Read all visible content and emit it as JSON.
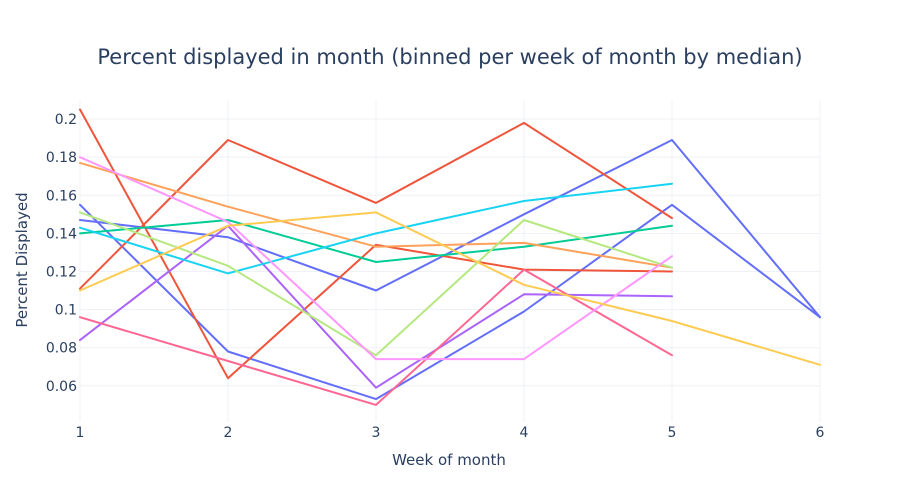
{
  "chart_data": {
    "type": "line",
    "title": "Percent displayed in month (binned per week of month by median)",
    "xlabel": "Week of month",
    "ylabel": "Percent Displayed",
    "xlim": [
      1,
      6
    ],
    "ylim": [
      0.041,
      0.21
    ],
    "x_ticks": [
      "1",
      "2",
      "3",
      "4",
      "5",
      "6"
    ],
    "y_ticks": [
      "0.06",
      "0.08",
      "0.1",
      "0.12",
      "0.14",
      "0.16",
      "0.18",
      "0.2"
    ],
    "grid": true,
    "legend": "none",
    "series": [
      {
        "color": "#636efa",
        "x": [
          1,
          2,
          3,
          4,
          5,
          6
        ],
        "y": [
          0.155,
          0.078,
          0.053,
          0.099,
          0.155,
          0.096
        ]
      },
      {
        "color": "#636efa",
        "x": [
          1,
          2,
          3,
          4,
          5,
          6
        ],
        "y": [
          0.147,
          0.138,
          0.11,
          0.15,
          0.189,
          0.096
        ]
      },
      {
        "color": "#ef553b",
        "x": [
          1,
          2,
          3,
          4,
          5
        ],
        "y": [
          0.205,
          0.064,
          0.134,
          0.121,
          0.12
        ]
      },
      {
        "color": "#ef553b",
        "x": [
          1,
          2,
          3,
          4,
          5
        ],
        "y": [
          0.111,
          0.189,
          0.156,
          0.198,
          0.148
        ]
      },
      {
        "color": "#00cc96",
        "x": [
          1,
          2,
          3,
          4,
          5
        ],
        "y": [
          0.14,
          0.147,
          0.125,
          0.133,
          0.144
        ]
      },
      {
        "color": "#ab63fa",
        "x": [
          1,
          2,
          3,
          4,
          5
        ],
        "y": [
          0.084,
          0.144,
          0.059,
          0.108,
          0.107
        ]
      },
      {
        "color": "#ffa15a",
        "x": [
          1,
          2,
          3,
          4,
          5
        ],
        "y": [
          0.177,
          0.154,
          0.133,
          0.135,
          0.122
        ]
      },
      {
        "color": "#19d3f3",
        "x": [
          1,
          2,
          3,
          4,
          5
        ],
        "y": [
          0.143,
          0.119,
          0.14,
          0.157,
          0.166
        ]
      },
      {
        "color": "#ff6692",
        "x": [
          1,
          2,
          3,
          4,
          5
        ],
        "y": [
          0.096,
          0.073,
          0.05,
          0.121,
          0.076
        ]
      },
      {
        "color": "#b6e880",
        "x": [
          1,
          2,
          3,
          4,
          5
        ],
        "y": [
          0.151,
          0.123,
          0.076,
          0.147,
          0.122
        ]
      },
      {
        "color": "#ff97ff",
        "x": [
          1,
          2,
          3,
          4,
          5
        ],
        "y": [
          0.18,
          0.146,
          0.074,
          0.074,
          0.128
        ]
      },
      {
        "color": "#fecb52",
        "x": [
          1,
          2,
          3,
          4,
          5,
          6
        ],
        "y": [
          0.11,
          0.144,
          0.151,
          0.113,
          0.094,
          0.071
        ]
      }
    ]
  }
}
